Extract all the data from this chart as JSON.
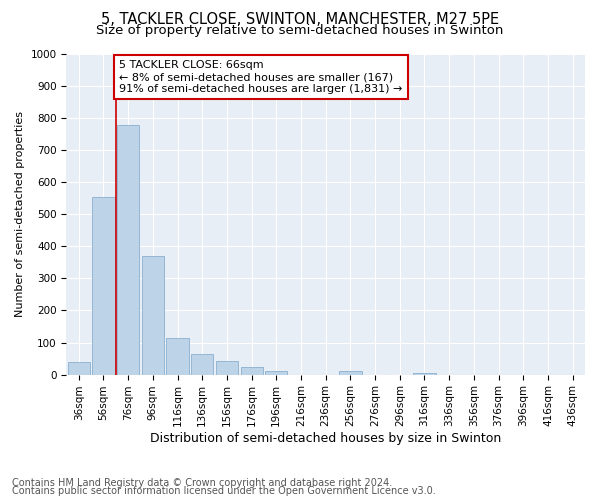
{
  "title": "5, TACKLER CLOSE, SWINTON, MANCHESTER, M27 5PE",
  "subtitle": "Size of property relative to semi-detached houses in Swinton",
  "xlabel": "Distribution of semi-detached houses by size in Swinton",
  "ylabel": "Number of semi-detached properties",
  "categories": [
    "36sqm",
    "56sqm",
    "76sqm",
    "96sqm",
    "116sqm",
    "136sqm",
    "156sqm",
    "176sqm",
    "196sqm",
    "216sqm",
    "236sqm",
    "256sqm",
    "276sqm",
    "296sqm",
    "316sqm",
    "336sqm",
    "356sqm",
    "376sqm",
    "396sqm",
    "416sqm",
    "436sqm"
  ],
  "values": [
    40,
    555,
    780,
    370,
    115,
    65,
    42,
    25,
    10,
    0,
    0,
    12,
    0,
    0,
    5,
    0,
    0,
    0,
    0,
    0,
    0
  ],
  "bar_color": "#bdd4e8",
  "bar_edge_color": "#8ab0d0",
  "vline_pos": 1.5,
  "annotation_title": "5 TACKLER CLOSE: 66sqm",
  "annotation_line1": "← 8% of semi-detached houses are smaller (167)",
  "annotation_line2": "91% of semi-detached houses are larger (1,831) →",
  "annotation_box_color": "#ffffff",
  "annotation_box_edge": "#cc0000",
  "vline_color": "#cc0000",
  "ylim": [
    0,
    1000
  ],
  "yticks": [
    0,
    100,
    200,
    300,
    400,
    500,
    600,
    700,
    800,
    900,
    1000
  ],
  "bg_color": "#e8eef5",
  "footer1": "Contains HM Land Registry data © Crown copyright and database right 2024.",
  "footer2": "Contains public sector information licensed under the Open Government Licence v3.0.",
  "title_fontsize": 10.5,
  "subtitle_fontsize": 9.5,
  "xlabel_fontsize": 9,
  "ylabel_fontsize": 8,
  "tick_fontsize": 7.5,
  "annotation_fontsize": 8,
  "footer_fontsize": 7
}
